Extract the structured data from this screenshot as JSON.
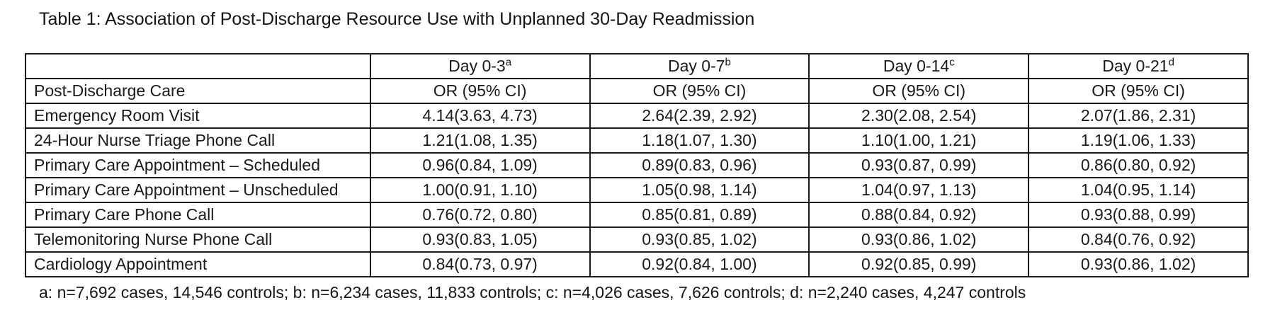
{
  "title": "Table 1: Association of Post-Discharge Resource Use with Unplanned 30-Day Readmission",
  "table": {
    "corner_label": "",
    "row_header_label": "Post-Discharge Care",
    "columns": [
      {
        "label": "Day 0-3",
        "sup": "a",
        "subheader": "OR (95% CI)"
      },
      {
        "label": "Day 0-7",
        "sup": "b",
        "subheader": "OR (95% CI)"
      },
      {
        "label": "Day 0-14",
        "sup": "c",
        "subheader": "OR (95% CI)"
      },
      {
        "label": "Day 0-21",
        "sup": "d",
        "subheader": "OR (95% CI)"
      }
    ],
    "rows": [
      {
        "label": "Emergency Room Visit",
        "values": [
          "4.14(3.63, 4.73)",
          "2.64(2.39, 2.92)",
          "2.30(2.08, 2.54)",
          "2.07(1.86, 2.31)"
        ]
      },
      {
        "label": "24-Hour Nurse Triage Phone Call",
        "values": [
          "1.21(1.08, 1.35)",
          "1.18(1.07, 1.30)",
          "1.10(1.00, 1.21)",
          "1.19(1.06, 1.33)"
        ]
      },
      {
        "label": "Primary Care Appointment – Scheduled",
        "values": [
          "0.96(0.84, 1.09)",
          "0.89(0.83, 0.96)",
          "0.93(0.87, 0.99)",
          "0.86(0.80, 0.92)"
        ]
      },
      {
        "label": "Primary Care Appointment – Unscheduled",
        "values": [
          "1.00(0.91, 1.10)",
          "1.05(0.98, 1.14)",
          "1.04(0.97, 1.13)",
          "1.04(0.95, 1.14)"
        ]
      },
      {
        "label": "Primary Care Phone Call",
        "values": [
          "0.76(0.72, 0.80)",
          "0.85(0.81, 0.89)",
          "0.88(0.84, 0.92)",
          "0.93(0.88, 0.99)"
        ]
      },
      {
        "label": "Telemonitoring Nurse Phone Call",
        "values": [
          "0.93(0.83, 1.05)",
          "0.93(0.85, 1.02)",
          "0.93(0.86, 1.02)",
          "0.84(0.76, 0.92)"
        ]
      },
      {
        "label": "Cardiology Appointment",
        "values": [
          "0.84(0.73, 0.97)",
          "0.92(0.84, 1.00)",
          "0.92(0.85, 0.99)",
          "0.93(0.86, 1.02)"
        ]
      }
    ],
    "footnote": "a: n=7,692 cases, 14,546 controls; b: n=6,234 cases, 11,833 controls; c: n=4,026 cases, 7,626 controls; d: n=2,240 cases, 4,247 controls"
  },
  "chart_data": {
    "type": "table",
    "title": "Table 1: Association of Post-Discharge Resource Use with Unplanned 30-Day Readmission",
    "columns": [
      "Post-Discharge Care",
      "Day 0-3 OR (95% CI)",
      "Day 0-7 OR (95% CI)",
      "Day 0-14 OR (95% CI)",
      "Day 0-21 OR (95% CI)"
    ],
    "rows": [
      [
        "Emergency Room Visit",
        "4.14(3.63, 4.73)",
        "2.64(2.39, 2.92)",
        "2.30(2.08, 2.54)",
        "2.07(1.86, 2.31)"
      ],
      [
        "24-Hour Nurse Triage Phone Call",
        "1.21(1.08, 1.35)",
        "1.18(1.07, 1.30)",
        "1.10(1.00, 1.21)",
        "1.19(1.06, 1.33)"
      ],
      [
        "Primary Care Appointment – Scheduled",
        "0.96(0.84, 1.09)",
        "0.89(0.83, 0.96)",
        "0.93(0.87, 0.99)",
        "0.86(0.80, 0.92)"
      ],
      [
        "Primary Care Appointment – Unscheduled",
        "1.00(0.91, 1.10)",
        "1.05(0.98, 1.14)",
        "1.04(0.97, 1.13)",
        "1.04(0.95, 1.14)"
      ],
      [
        "Primary Care Phone Call",
        "0.76(0.72, 0.80)",
        "0.85(0.81, 0.89)",
        "0.88(0.84, 0.92)",
        "0.93(0.88, 0.99)"
      ],
      [
        "Telemonitoring Nurse Phone Call",
        "0.93(0.83, 1.05)",
        "0.93(0.85, 1.02)",
        "0.93(0.86, 1.02)",
        "0.84(0.76, 0.92)"
      ],
      [
        "Cardiology Appointment",
        "0.84(0.73, 0.97)",
        "0.92(0.84, 1.00)",
        "0.92(0.85, 0.99)",
        "0.93(0.86, 1.02)"
      ]
    ],
    "footnote": "a: n=7,692 cases, 14,546 controls; b: n=6,234 cases, 11,833 controls; c: n=4,026 cases, 7,626 controls; d: n=2,240 cases, 4,247 controls"
  }
}
